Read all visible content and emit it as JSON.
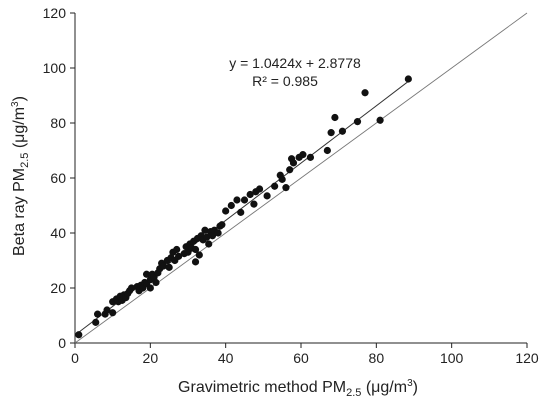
{
  "chart_data": {
    "type": "scatter",
    "xlabel": {
      "main": "Gravimetric method PM",
      "sub": "2.5",
      "unit_pre": " (μg/m",
      "sup": "3",
      "unit_post": ")"
    },
    "ylabel": {
      "main": "Beta ray PM",
      "sub": "2.5",
      "unit_pre": " (μg/m",
      "sup": "3",
      "unit_post": ")"
    },
    "xlim": [
      0,
      120
    ],
    "ylim": [
      0,
      120
    ],
    "xticks": [
      0,
      20,
      40,
      60,
      80,
      100,
      120
    ],
    "yticks": [
      0,
      20,
      40,
      60,
      80,
      100,
      120
    ],
    "grid": false,
    "equation": "y = 1.0424x + 2.8778",
    "r_squared": "R² = 0.985",
    "regression": {
      "slope": 1.0424,
      "intercept": 2.8778,
      "x_range": [
        1,
        89
      ]
    },
    "reference_line": {
      "slope": 1,
      "intercept": 0,
      "x_range": [
        0,
        120
      ]
    },
    "marker_color": "#111111",
    "line_color": "#333333",
    "points": [
      [
        1,
        3
      ],
      [
        5.5,
        7.5
      ],
      [
        6,
        10.5
      ],
      [
        8,
        10.5
      ],
      [
        8.5,
        12
      ],
      [
        10,
        11
      ],
      [
        10,
        15
      ],
      [
        11,
        16
      ],
      [
        11.5,
        15
      ],
      [
        12,
        17
      ],
      [
        12.5,
        15.5
      ],
      [
        13,
        17.5
      ],
      [
        13.5,
        16.5
      ],
      [
        14,
        18
      ],
      [
        14.5,
        19
      ],
      [
        15,
        20
      ],
      [
        16.5,
        20.5
      ],
      [
        17,
        19
      ],
      [
        17.5,
        21
      ],
      [
        18,
        20
      ],
      [
        18.5,
        22
      ],
      [
        19,
        25
      ],
      [
        19,
        21.5
      ],
      [
        20,
        23
      ],
      [
        20,
        20
      ],
      [
        20.5,
        25
      ],
      [
        21,
        24
      ],
      [
        21.5,
        22
      ],
      [
        22,
        25.5
      ],
      [
        22.5,
        27
      ],
      [
        23,
        29
      ],
      [
        23.5,
        28
      ],
      [
        24.5,
        30
      ],
      [
        25,
        27.5
      ],
      [
        25.5,
        31
      ],
      [
        26,
        33
      ],
      [
        26.5,
        30
      ],
      [
        27,
        34
      ],
      [
        27.5,
        31.5
      ],
      [
        29,
        32.5
      ],
      [
        29.5,
        35
      ],
      [
        30,
        33
      ],
      [
        30.5,
        36
      ],
      [
        31,
        34.5
      ],
      [
        31.5,
        37
      ],
      [
        32,
        34
      ],
      [
        32,
        29.5
      ],
      [
        32.5,
        38
      ],
      [
        33,
        32
      ],
      [
        33.5,
        39
      ],
      [
        34,
        37.5
      ],
      [
        34.5,
        41
      ],
      [
        35,
        38.5
      ],
      [
        35.5,
        36
      ],
      [
        36,
        40.5
      ],
      [
        36.5,
        39
      ],
      [
        37,
        41
      ],
      [
        38,
        40
      ],
      [
        38.5,
        42.5
      ],
      [
        39,
        43
      ],
      [
        40,
        48
      ],
      [
        41.5,
        50
      ],
      [
        43,
        52
      ],
      [
        44,
        47.5
      ],
      [
        45,
        52
      ],
      [
        46.5,
        54
      ],
      [
        47.5,
        50.5
      ],
      [
        48,
        55
      ],
      [
        49,
        56
      ],
      [
        51,
        53.5
      ],
      [
        53,
        57
      ],
      [
        54.5,
        61
      ],
      [
        55,
        59.5
      ],
      [
        56,
        56.5
      ],
      [
        57,
        63
      ],
      [
        57.5,
        67
      ],
      [
        58,
        65.5
      ],
      [
        59.5,
        67.5
      ],
      [
        60.5,
        68.5
      ],
      [
        62.5,
        67.5
      ],
      [
        67,
        70
      ],
      [
        68,
        76.5
      ],
      [
        69,
        82
      ],
      [
        71,
        77
      ],
      [
        75,
        80.5
      ],
      [
        77,
        91
      ],
      [
        81,
        81
      ],
      [
        88.5,
        96
      ]
    ]
  }
}
